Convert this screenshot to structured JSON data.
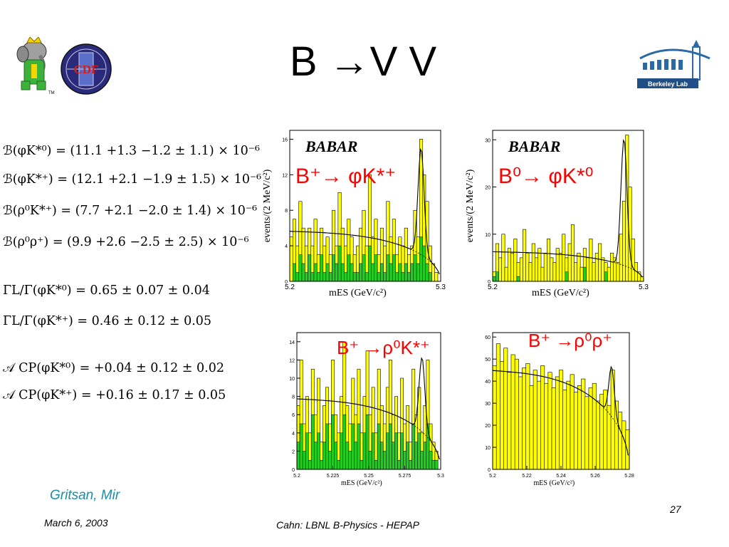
{
  "slide": {
    "title": "B →V V",
    "authors": "Gritsan, Mir",
    "date": "March 6, 2003",
    "footer": "Cahn:  LBNL B-Physics - HEPAP",
    "page_number": "27"
  },
  "logos": {
    "lbl_text": "Berkeley Lab",
    "cdf_text": "CDF",
    "babar_tm": "TM"
  },
  "equations": [
    {
      "lhs": "ℬ(φK*⁰)",
      "rhs": "= (11.1 +1.3 −1.2 ± 1.1) × 10⁻⁶"
    },
    {
      "lhs": "ℬ(φK*⁺)",
      "rhs": "= (12.1 +2.1 −1.9 ± 1.5) × 10⁻⁶"
    },
    {
      "lhs": "ℬ(ρ⁰K*⁺)",
      "rhs": "= (7.7 +2.1 −2.0 ± 1.4) × 10⁻⁶"
    },
    {
      "lhs": "ℬ(ρ⁰ρ⁺)",
      "rhs": "= (9.9 +2.6 −2.5 ± 2.5) × 10⁻⁶"
    },
    {
      "lhs": "ΓL/Γ(φK*⁰)",
      "rhs": "= 0.65 ± 0.07 ± 0.04"
    },
    {
      "lhs": "ΓL/Γ(φK*⁺)",
      "rhs": "= 0.46 ± 0.12 ± 0.05"
    },
    {
      "lhs": "𝒜 CP(φK*⁰)",
      "rhs": "= +0.04 ± 0.12 ± 0.02"
    },
    {
      "lhs": "𝒜 CP(φK*⁺)",
      "rhs": "= +0.16 ± 0.17 ± 0.05"
    }
  ],
  "chart_data": [
    {
      "type": "bar",
      "watermark": "BABAR",
      "label": "B⁺→ φK*⁺",
      "ylabel": "events/(2 MeV/c²)",
      "xlabel": "mES (GeV/c²)",
      "xlim": [
        5.2,
        5.3
      ],
      "ylim": [
        0,
        17
      ],
      "yticks": [
        0,
        4,
        8,
        12,
        16
      ],
      "xticks": [
        "5.2",
        "5.3"
      ],
      "yellow": [
        5,
        7,
        4,
        9,
        6,
        4,
        6,
        4,
        7,
        3,
        6,
        4,
        5,
        3,
        8,
        4,
        10,
        6,
        4,
        7,
        5,
        3,
        4,
        6,
        8,
        4,
        12,
        5,
        7,
        3,
        6,
        4,
        9,
        5,
        7,
        3,
        5,
        4,
        6,
        3,
        4,
        8,
        5,
        16,
        12,
        9,
        4,
        2,
        1,
        0
      ],
      "green": [
        0,
        2,
        1,
        3,
        2,
        1,
        3,
        1,
        2,
        1,
        3,
        1,
        2,
        1,
        3,
        2,
        4,
        2,
        1,
        3,
        2,
        1,
        1,
        2,
        3,
        1,
        4,
        2,
        3,
        1,
        2,
        1,
        3,
        2,
        3,
        1,
        2,
        1,
        2,
        1,
        2,
        3,
        2,
        5,
        4,
        2,
        1,
        0,
        0,
        0
      ],
      "peak": 14.8
    },
    {
      "type": "bar",
      "watermark": "BABAR",
      "label": "B⁰→ φK*⁰",
      "ylabel": "events/(2 MeV/c²)",
      "xlabel": "mES (GeV/c²)",
      "xlim": [
        5.2,
        5.3
      ],
      "ylim": [
        0,
        32
      ],
      "yticks": [
        0,
        10,
        20,
        30
      ],
      "xticks": [
        "5.2",
        "5.3"
      ],
      "yellow": [
        2,
        8,
        5,
        10,
        3,
        7,
        6,
        9,
        4,
        5,
        11,
        6,
        4,
        8,
        5,
        7,
        3,
        6,
        9,
        5,
        4,
        7,
        6,
        10,
        5,
        8,
        12,
        4,
        6,
        3,
        7,
        5,
        9,
        4,
        6,
        8,
        5,
        4,
        3,
        6,
        5,
        4,
        10,
        17,
        31,
        20,
        9,
        4,
        2,
        1
      ],
      "green": [
        1,
        2,
        0,
        0,
        0,
        0,
        0,
        0,
        1,
        0,
        0,
        0,
        0,
        0,
        0,
        0,
        0,
        0,
        0,
        0,
        0,
        0,
        0,
        0,
        2,
        0,
        0,
        0,
        0,
        0,
        3,
        0,
        0,
        0,
        0,
        0,
        0,
        2,
        0,
        0,
        0,
        0,
        0,
        0,
        0,
        0,
        0,
        0,
        0,
        0
      ],
      "peak": 30
    },
    {
      "type": "bar",
      "watermark": "",
      "label": "B⁺ →ρ⁰K*⁺",
      "ylabel": "",
      "xlabel": "mES (GeV/c²)",
      "xlim": [
        5.2,
        5.3
      ],
      "ylim": [
        0,
        15
      ],
      "yticks": [
        0,
        2,
        4,
        6,
        8,
        10,
        12,
        14
      ],
      "xticks": [
        "5.2",
        "5.225",
        "5.25",
        "5.275",
        "5.3"
      ],
      "yellow": [
        7,
        12,
        5,
        8,
        4,
        11,
        6,
        10,
        3,
        7,
        9,
        5,
        12,
        6,
        4,
        8,
        14,
        7,
        5,
        10,
        6,
        11,
        4,
        8,
        13,
        6,
        9,
        4,
        11,
        7,
        5,
        9,
        12,
        6,
        8,
        4,
        10,
        5,
        7,
        3,
        11,
        6,
        9,
        4,
        7,
        12,
        5,
        3,
        2,
        0
      ],
      "green": [
        3,
        5,
        2,
        4,
        1,
        6,
        3,
        4,
        1,
        3,
        5,
        2,
        6,
        3,
        1,
        4,
        6,
        3,
        2,
        5,
        3,
        5,
        1,
        4,
        6,
        2,
        4,
        1,
        5,
        3,
        2,
        4,
        5,
        3,
        4,
        1,
        4,
        2,
        3,
        1,
        5,
        3,
        4,
        2,
        3,
        5,
        2,
        1,
        1,
        0
      ],
      "peak": 12
    },
    {
      "type": "bar",
      "watermark": "",
      "label": "B⁺ →ρ⁰ρ⁺",
      "ylabel": "",
      "xlabel": "mES (GeV/c²)",
      "xlim": [
        5.2,
        5.29
      ],
      "ylim": [
        0,
        62
      ],
      "yticks": [
        0,
        10,
        20,
        30,
        40,
        50,
        60
      ],
      "xticks": [
        "5.2",
        "5.22",
        "5.24",
        "5.26",
        "5.28"
      ],
      "yellow": [
        47,
        57,
        49,
        55,
        44,
        52,
        50,
        42,
        46,
        48,
        38,
        45,
        40,
        47,
        39,
        44,
        37,
        42,
        45,
        36,
        40,
        43,
        35,
        38,
        41,
        33,
        37,
        39,
        31,
        34,
        36,
        29,
        45,
        31,
        26,
        22,
        18
      ],
      "green": [],
      "peak": 45
    }
  ]
}
